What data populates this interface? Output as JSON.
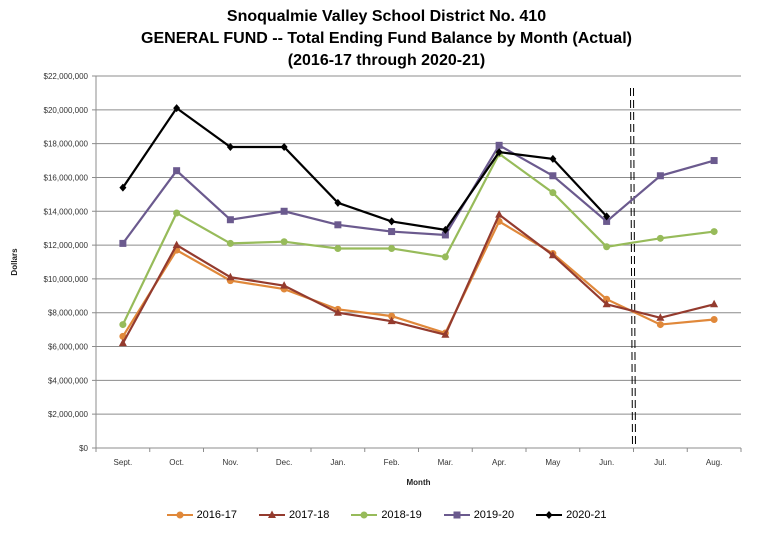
{
  "chart_data": {
    "type": "line",
    "title": [
      "Snoqualmie Valley School District No. 410",
      "GENERAL FUND  --  Total Ending Fund Balance by Month (Actual)",
      "(2016-17 through 2020-21)"
    ],
    "xlabel": "Month",
    "ylabel": "Dollars",
    "ylim": [
      0,
      22000000
    ],
    "ytick_step": 2000000,
    "yticks": [
      "$0",
      "$2,000,000",
      "$4,000,000",
      "$6,000,000",
      "$8,000,000",
      "$10,000,000",
      "$12,000,000",
      "$14,000,000",
      "$16,000,000",
      "$18,000,000",
      "$20,000,000",
      "$22,000,000"
    ],
    "categories": [
      "Sept.",
      "Oct.",
      "Nov.",
      "Dec.",
      "Jan.",
      "Feb.",
      "Mar.",
      "Apr.",
      "May",
      "Jun.",
      "Jul.",
      "Aug."
    ],
    "grid": true,
    "legend_position": "bottom",
    "fiscal_year_end_marker": "dashed vertical line between Jun. and Jul.",
    "series": [
      {
        "name": "2016-17",
        "color": "#e0883a",
        "marker": "circle",
        "values": [
          6600000,
          11700000,
          9900000,
          9400000,
          8200000,
          7800000,
          6800000,
          13400000,
          11500000,
          8800000,
          7300000,
          7600000
        ]
      },
      {
        "name": "2017-18",
        "color": "#943b2e",
        "marker": "triangle",
        "values": [
          6200000,
          12000000,
          10100000,
          9600000,
          8000000,
          7500000,
          6700000,
          13800000,
          11400000,
          8500000,
          7700000,
          8500000
        ]
      },
      {
        "name": "2018-19",
        "color": "#97bb5a",
        "marker": "circle",
        "values": [
          7300000,
          13900000,
          12100000,
          12200000,
          11800000,
          11800000,
          11300000,
          17400000,
          15100000,
          11900000,
          12400000,
          12800000
        ]
      },
      {
        "name": "2019-20",
        "color": "#6b5a8e",
        "marker": "square",
        "values": [
          12100000,
          16400000,
          13500000,
          14000000,
          13200000,
          12800000,
          12600000,
          17900000,
          16100000,
          13400000,
          16100000,
          17000000
        ]
      },
      {
        "name": "2020-21",
        "color": "#000000",
        "marker": "diamond",
        "values": [
          15400000,
          20100000,
          17800000,
          17800000,
          14500000,
          13400000,
          12900000,
          17500000,
          17100000,
          13700000,
          null,
          null
        ]
      }
    ]
  }
}
